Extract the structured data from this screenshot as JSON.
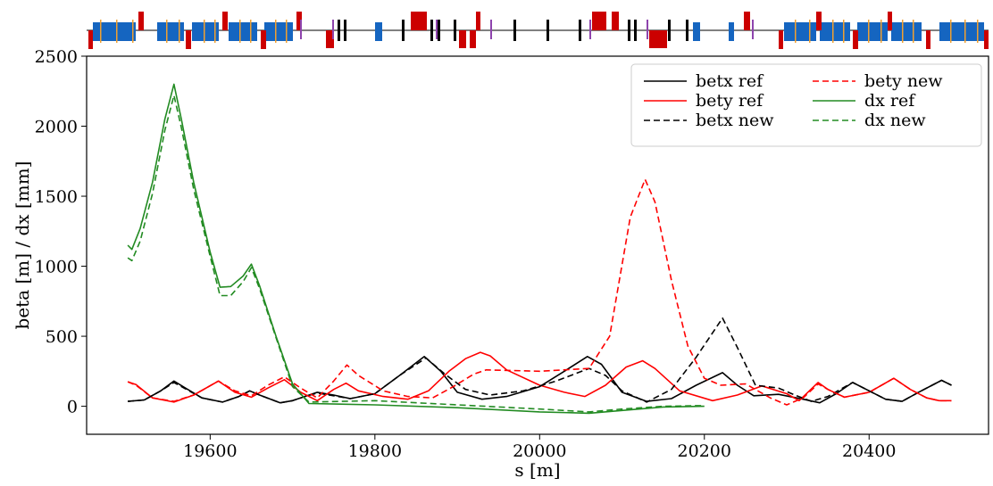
{
  "chart_data": {
    "type": "line",
    "xlabel": "s [m]",
    "ylabel": "beta [m] / dx [mm]",
    "xlim": [
      19450,
      20545
    ],
    "ylim": [
      -200,
      2500
    ],
    "xticks": [
      19600,
      19800,
      20000,
      20200,
      20400
    ],
    "yticks": [
      0,
      500,
      1000,
      1500,
      2000,
      2500
    ],
    "legend_position": "top-right",
    "legend_columns": 2,
    "grid": false,
    "series": [
      {
        "name": "betx ref",
        "color": "#000000",
        "dash": "solid",
        "points": [
          [
            19500,
            35
          ],
          [
            19520,
            45
          ],
          [
            19540,
            110
          ],
          [
            19556,
            180
          ],
          [
            19570,
            130
          ],
          [
            19590,
            60
          ],
          [
            19615,
            30
          ],
          [
            19635,
            70
          ],
          [
            19648,
            110
          ],
          [
            19660,
            80
          ],
          [
            19685,
            25
          ],
          [
            19700,
            40
          ],
          [
            19715,
            70
          ],
          [
            19730,
            100
          ],
          [
            19750,
            80
          ],
          [
            19770,
            55
          ],
          [
            19800,
            90
          ],
          [
            19830,
            220
          ],
          [
            19860,
            355
          ],
          [
            19880,
            250
          ],
          [
            19900,
            100
          ],
          [
            19930,
            50
          ],
          [
            19960,
            70
          ],
          [
            20000,
            140
          ],
          [
            20030,
            250
          ],
          [
            20058,
            355
          ],
          [
            20075,
            300
          ],
          [
            20100,
            100
          ],
          [
            20130,
            35
          ],
          [
            20160,
            55
          ],
          [
            20190,
            150
          ],
          [
            20222,
            240
          ],
          [
            20240,
            150
          ],
          [
            20260,
            75
          ],
          [
            20290,
            85
          ],
          [
            20320,
            50
          ],
          [
            20340,
            25
          ],
          [
            20360,
            90
          ],
          [
            20380,
            170
          ],
          [
            20400,
            110
          ],
          [
            20420,
            50
          ],
          [
            20440,
            35
          ],
          [
            20460,
            100
          ],
          [
            20488,
            185
          ],
          [
            20500,
            150
          ]
        ]
      },
      {
        "name": "bety ref",
        "color": "#ff0000",
        "dash": "solid",
        "points": [
          [
            19500,
            175
          ],
          [
            19510,
            155
          ],
          [
            19530,
            60
          ],
          [
            19556,
            30
          ],
          [
            19580,
            80
          ],
          [
            19610,
            180
          ],
          [
            19630,
            100
          ],
          [
            19650,
            65
          ],
          [
            19670,
            130
          ],
          [
            19690,
            190
          ],
          [
            19710,
            100
          ],
          [
            19730,
            40
          ],
          [
            19750,
            120
          ],
          [
            19765,
            165
          ],
          [
            19780,
            110
          ],
          [
            19810,
            70
          ],
          [
            19840,
            50
          ],
          [
            19865,
            110
          ],
          [
            19890,
            250
          ],
          [
            19910,
            340
          ],
          [
            19928,
            385
          ],
          [
            19940,
            360
          ],
          [
            19960,
            260
          ],
          [
            20000,
            150
          ],
          [
            20030,
            100
          ],
          [
            20055,
            70
          ],
          [
            20080,
            150
          ],
          [
            20105,
            280
          ],
          [
            20125,
            325
          ],
          [
            20140,
            270
          ],
          [
            20170,
            110
          ],
          [
            20210,
            40
          ],
          [
            20240,
            80
          ],
          [
            20270,
            145
          ],
          [
            20300,
            90
          ],
          [
            20315,
            40
          ],
          [
            20338,
            170
          ],
          [
            20350,
            120
          ],
          [
            20370,
            65
          ],
          [
            20400,
            100
          ],
          [
            20430,
            200
          ],
          [
            20450,
            120
          ],
          [
            20470,
            60
          ],
          [
            20485,
            40
          ],
          [
            20500,
            40
          ]
        ]
      },
      {
        "name": "betx new",
        "color": "#000000",
        "dash": "dashed",
        "points": [
          [
            19500,
            35
          ],
          [
            19520,
            45
          ],
          [
            19540,
            110
          ],
          [
            19556,
            170
          ],
          [
            19570,
            125
          ],
          [
            19590,
            60
          ],
          [
            19615,
            30
          ],
          [
            19635,
            70
          ],
          [
            19648,
            110
          ],
          [
            19660,
            80
          ],
          [
            19685,
            25
          ],
          [
            19700,
            40
          ],
          [
            19715,
            70
          ],
          [
            19730,
            95
          ],
          [
            19750,
            75
          ],
          [
            19770,
            55
          ],
          [
            19800,
            90
          ],
          [
            19830,
            220
          ],
          [
            19862,
            345
          ],
          [
            19885,
            230
          ],
          [
            19910,
            120
          ],
          [
            19940,
            80
          ],
          [
            19980,
            110
          ],
          [
            20020,
            180
          ],
          [
            20060,
            270
          ],
          [
            20080,
            220
          ],
          [
            20100,
            110
          ],
          [
            20130,
            30
          ],
          [
            20160,
            120
          ],
          [
            20190,
            350
          ],
          [
            20222,
            630
          ],
          [
            20240,
            420
          ],
          [
            20262,
            150
          ],
          [
            20290,
            130
          ],
          [
            20310,
            80
          ],
          [
            20330,
            35
          ],
          [
            20350,
            70
          ],
          [
            20380,
            170
          ],
          [
            20400,
            110
          ],
          [
            20420,
            50
          ],
          [
            20440,
            35
          ],
          [
            20460,
            100
          ],
          [
            20488,
            185
          ],
          [
            20500,
            150
          ]
        ]
      },
      {
        "name": "bety new",
        "color": "#ff0000",
        "dash": "dashed",
        "points": [
          [
            19500,
            175
          ],
          [
            19510,
            150
          ],
          [
            19530,
            60
          ],
          [
            19556,
            35
          ],
          [
            19580,
            80
          ],
          [
            19610,
            180
          ],
          [
            19630,
            110
          ],
          [
            19650,
            75
          ],
          [
            19670,
            150
          ],
          [
            19690,
            210
          ],
          [
            19710,
            130
          ],
          [
            19730,
            60
          ],
          [
            19750,
            180
          ],
          [
            19766,
            295
          ],
          [
            19780,
            220
          ],
          [
            19810,
            110
          ],
          [
            19840,
            70
          ],
          [
            19870,
            60
          ],
          [
            19895,
            140
          ],
          [
            19920,
            230
          ],
          [
            19935,
            260
          ],
          [
            20000,
            250
          ],
          [
            20060,
            270
          ],
          [
            20085,
            500
          ],
          [
            20110,
            1350
          ],
          [
            20128,
            1620
          ],
          [
            20140,
            1460
          ],
          [
            20160,
            900
          ],
          [
            20180,
            430
          ],
          [
            20200,
            200
          ],
          [
            20220,
            150
          ],
          [
            20250,
            160
          ],
          [
            20280,
            60
          ],
          [
            20300,
            10
          ],
          [
            20320,
            60
          ],
          [
            20338,
            160
          ],
          [
            20350,
            120
          ],
          [
            20370,
            65
          ],
          [
            20400,
            100
          ],
          [
            20430,
            200
          ],
          [
            20450,
            120
          ],
          [
            20470,
            60
          ],
          [
            20485,
            40
          ],
          [
            20500,
            40
          ]
        ]
      },
      {
        "name": "dx ref",
        "color": "#228B22",
        "dash": "solid",
        "points": [
          [
            19500,
            1150
          ],
          [
            19505,
            1120
          ],
          [
            19515,
            1270
          ],
          [
            19530,
            1600
          ],
          [
            19545,
            2050
          ],
          [
            19556,
            2300
          ],
          [
            19565,
            2050
          ],
          [
            19580,
            1600
          ],
          [
            19600,
            1100
          ],
          [
            19612,
            850
          ],
          [
            19625,
            855
          ],
          [
            19640,
            930
          ],
          [
            19650,
            1015
          ],
          [
            19660,
            860
          ],
          [
            19680,
            500
          ],
          [
            19700,
            160
          ],
          [
            19720,
            20
          ],
          [
            19800,
            10
          ],
          [
            19900,
            -10
          ],
          [
            20000,
            -40
          ],
          [
            20060,
            -50
          ],
          [
            20100,
            -30
          ],
          [
            20150,
            -5
          ],
          [
            20200,
            0
          ]
        ]
      },
      {
        "name": "dx new",
        "color": "#228B22",
        "dash": "dashed",
        "points": [
          [
            19500,
            1060
          ],
          [
            19505,
            1040
          ],
          [
            19515,
            1180
          ],
          [
            19530,
            1520
          ],
          [
            19545,
            1970
          ],
          [
            19556,
            2220
          ],
          [
            19565,
            1990
          ],
          [
            19580,
            1550
          ],
          [
            19600,
            1070
          ],
          [
            19612,
            790
          ],
          [
            19625,
            790
          ],
          [
            19640,
            890
          ],
          [
            19650,
            990
          ],
          [
            19660,
            840
          ],
          [
            19680,
            490
          ],
          [
            19700,
            140
          ],
          [
            19720,
            30
          ],
          [
            19800,
            40
          ],
          [
            19900,
            10
          ],
          [
            20000,
            -20
          ],
          [
            20060,
            -40
          ],
          [
            20100,
            -20
          ],
          [
            20150,
            0
          ],
          [
            20200,
            5
          ]
        ]
      }
    ]
  },
  "lattice_strip": {
    "element_colors": {
      "dipole": "#1565c0",
      "quadrupole": "#cc0000",
      "sextupole": "#000000",
      "corrector": "#8e44ad",
      "monitor": "#f0a030"
    }
  }
}
